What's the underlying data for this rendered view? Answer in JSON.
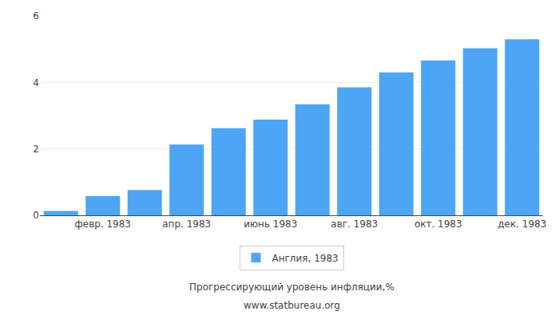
{
  "chart_data": {
    "type": "bar",
    "categories": [
      null,
      "февр. 1983",
      null,
      "апр. 1983",
      null,
      "июнь 1983",
      null,
      "авг. 1983",
      null,
      "окт. 1983",
      null,
      "дек. 1983"
    ],
    "series": [
      {
        "name": "Англия, 1983",
        "color": "#4da6f5",
        "values": [
          0.13,
          0.58,
          0.76,
          2.13,
          2.62,
          2.88,
          3.34,
          3.85,
          4.3,
          4.66,
          5.03,
          5.3
        ]
      }
    ],
    "ylim": [
      0,
      6
    ],
    "yticks": [
      0,
      2,
      4,
      6
    ],
    "grid": true,
    "legend": "bottom",
    "annotations": [
      "Прогрессирующий уровень инфляции,%",
      "www.statbureau.org"
    ]
  }
}
